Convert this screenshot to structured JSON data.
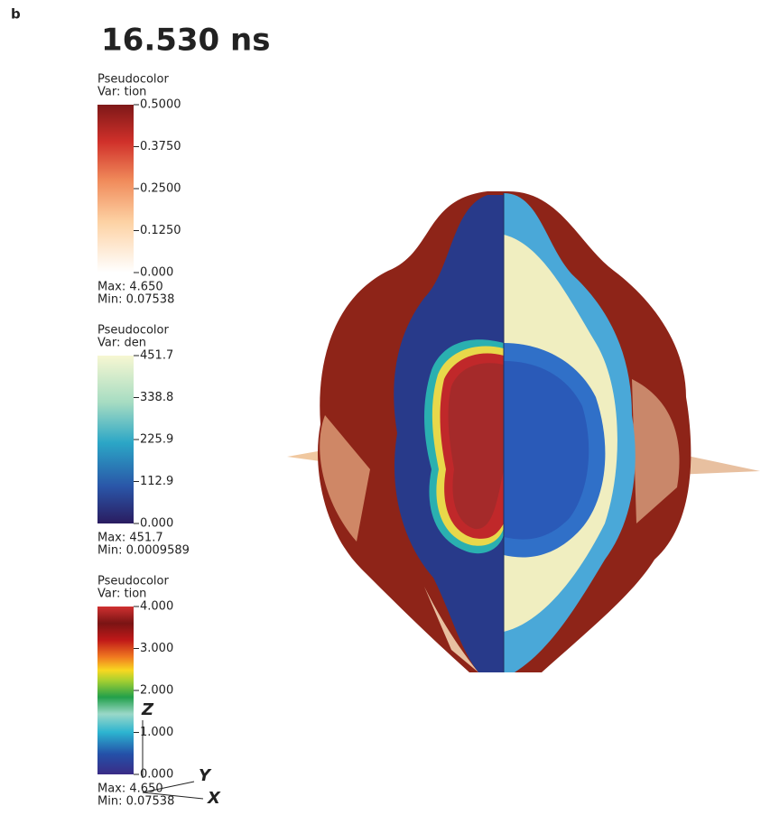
{
  "panel_label": "b",
  "time": "16.530 ns",
  "legends": [
    {
      "title": "Pseudocolor",
      "var": "Var: tion",
      "ticks": [
        "0.5000",
        "0.3750",
        "0.2500",
        "0.1250",
        "0.000"
      ],
      "max": "Max:  4.650",
      "min": "Min:  0.07538"
    },
    {
      "title": "Pseudocolor",
      "var": "Var: den",
      "ticks": [
        "451.7",
        "338.8",
        "225.9",
        "112.9",
        "0.000"
      ],
      "max": "Max:  451.7",
      "min": "Min:  0.0009589"
    },
    {
      "title": "Pseudocolor",
      "var": "Var: tion",
      "ticks": [
        "4.000",
        "3.000",
        "2.000",
        "1.000",
        "0.000"
      ],
      "max": "Max:  4.650",
      "min": "Min:  0.07538"
    }
  ],
  "axes": {
    "z": "Z",
    "y": "Y",
    "x": "X"
  }
}
